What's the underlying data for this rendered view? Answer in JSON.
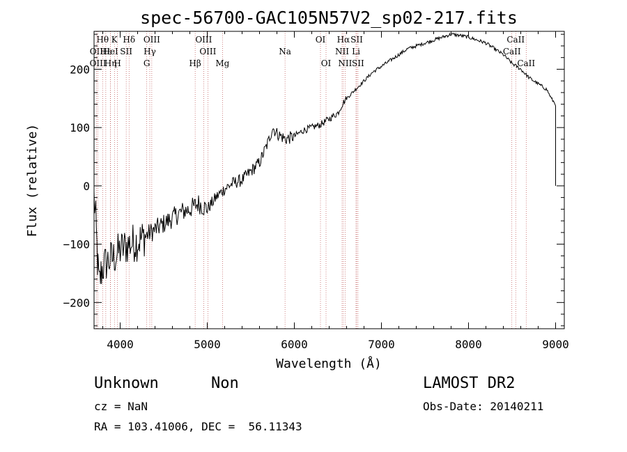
{
  "chart_data": {
    "type": "line",
    "title": "spec-56700-GAC105N57V2_sp02-217.fits",
    "xlabel": "Wavelength (Å)",
    "ylabel": "Flux (relative)",
    "xlim": [
      3700,
      9100
    ],
    "ylim": [
      -245,
      265
    ],
    "xticks": [
      4000,
      5000,
      6000,
      7000,
      8000,
      9000
    ],
    "yticks": [
      -200,
      -100,
      0,
      100,
      200
    ],
    "grid": false,
    "series": [
      {
        "color": "#000000",
        "x": [
          3700,
          3720,
          3740,
          3760,
          3780,
          3800,
          3850,
          3900,
          3950,
          4000,
          4050,
          4100,
          4200,
          4300,
          4400,
          4500,
          4600,
          4700,
          4800,
          4900,
          5000,
          5100,
          5200,
          5300,
          5400,
          5500,
          5600,
          5700,
          5750,
          5800,
          5900,
          6000,
          6100,
          6200,
          6300,
          6400,
          6500,
          6550,
          6600,
          6700,
          6800,
          6900,
          7000,
          7100,
          7200,
          7300,
          7400,
          7500,
          7600,
          7700,
          7800,
          7900,
          8000,
          8100,
          8200,
          8300,
          8400,
          8500,
          8600,
          8700,
          8800,
          8900,
          8950,
          9000,
          9000
        ],
        "y": [
          -20,
          -60,
          -130,
          -170,
          -150,
          -140,
          -130,
          -125,
          -120,
          -110,
          -105,
          -100,
          -95,
          -85,
          -75,
          -65,
          -55,
          -45,
          -40,
          -30,
          -40,
          -20,
          -5,
          5,
          10,
          25,
          40,
          75,
          100,
          90,
          80,
          85,
          95,
          100,
          105,
          115,
          125,
          140,
          150,
          165,
          180,
          195,
          205,
          215,
          225,
          235,
          240,
          245,
          250,
          255,
          260,
          258,
          255,
          250,
          245,
          235,
          225,
          210,
          200,
          185,
          175,
          165,
          150,
          140,
          0
        ]
      }
    ],
    "spectral_lines": [
      {
        "label": "Hθ",
        "x": 3798,
        "row": 0
      },
      {
        "label": "OII",
        "x": 3727,
        "row": 1
      },
      {
        "label": "OIII",
        "x": 3745,
        "row": 2
      },
      {
        "label": "Hε",
        "x": 3835,
        "row": 1
      },
      {
        "label": "Hη",
        "x": 3889,
        "row": 2
      },
      {
        "label": "K",
        "x": 3934,
        "row": 0
      },
      {
        "label": "HeI",
        "x": 3889,
        "row": 1
      },
      {
        "label": "SII",
        "x": 4069,
        "row": 1
      },
      {
        "label": "H",
        "x": 3969,
        "row": 2
      },
      {
        "label": "Hδ",
        "x": 4102,
        "row": 0
      },
      {
        "label": "OIII",
        "x": 4363,
        "row": 0
      },
      {
        "label": "Hγ",
        "x": 4340,
        "row": 1
      },
      {
        "label": "G",
        "x": 4305,
        "row": 2
      },
      {
        "label": "Hβ",
        "x": 4861,
        "row": 2
      },
      {
        "label": "OIII",
        "x": 4959,
        "row": 0
      },
      {
        "label": "OIII",
        "x": 5007,
        "row": 1
      },
      {
        "label": "Mg",
        "x": 5175,
        "row": 2
      },
      {
        "label": "Na",
        "x": 5893,
        "row": 1
      },
      {
        "label": "OI",
        "x": 6300,
        "row": 0
      },
      {
        "label": "OI",
        "x": 6364,
        "row": 2
      },
      {
        "label": "Hα",
        "x": 6563,
        "row": 0
      },
      {
        "label": "SII",
        "x": 6716,
        "row": 0
      },
      {
        "label": "NII",
        "x": 6548,
        "row": 1
      },
      {
        "label": "Li",
        "x": 6708,
        "row": 1
      },
      {
        "label": "NII",
        "x": 6583,
        "row": 2
      },
      {
        "label": "SII",
        "x": 6731,
        "row": 2
      },
      {
        "label": "CaII",
        "x": 8542,
        "row": 0
      },
      {
        "label": "CaII",
        "x": 8498,
        "row": 1
      },
      {
        "label": "CaII",
        "x": 8662,
        "row": 2
      }
    ]
  },
  "footer": {
    "class_label": "Unknown",
    "subclass_label": "Non",
    "survey_label": "LAMOST DR2",
    "redshift_text": "cz = NaN",
    "obs_date_text": "Obs-Date: 20140211",
    "coords_text": "RA = 103.41006, DEC =  56.11343"
  }
}
